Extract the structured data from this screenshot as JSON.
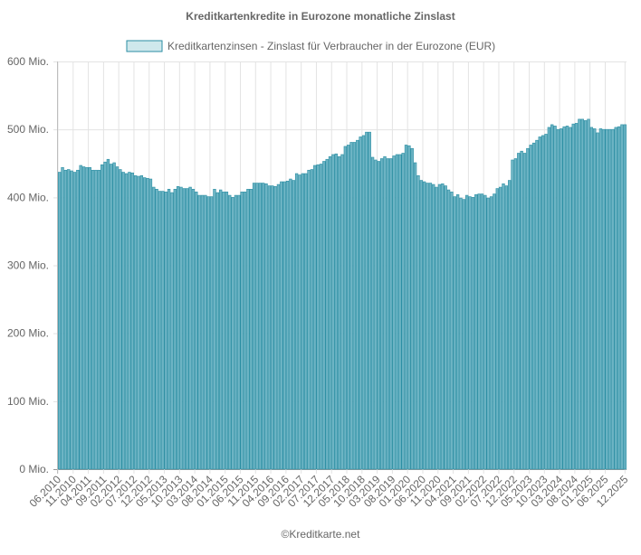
{
  "chart_data": {
    "type": "bar",
    "title": "Kreditkartenkredite in Eurozone monatliche Zinslast",
    "legend_position": "top",
    "grid": true,
    "x_start": "06.2010",
    "x_end": "12.2025",
    "x_tick_labels": [
      "06.2010",
      "11.2010",
      "04.2011",
      "09.2011",
      "02.2012",
      "07.2012",
      "12.2012",
      "05.2013",
      "10.2013",
      "03.2014",
      "08.2014",
      "01.2015",
      "06.2015",
      "11.2015",
      "04.2016",
      "09.2016",
      "02.2017",
      "07.2017",
      "12.2017",
      "05.2018",
      "10.2018",
      "03.2019",
      "08.2019",
      "01.2020",
      "06.2020",
      "11.2020",
      "04.2021",
      "09.2021",
      "02.2022",
      "07.2022",
      "12.2022",
      "05.2023",
      "10.2023",
      "03.2024",
      "08.2024",
      "01.2025",
      "06.2025",
      "12.2025"
    ],
    "y_ticks": [
      0,
      100,
      200,
      300,
      400,
      500,
      600
    ],
    "y_tick_suffix": " Mio.",
    "ylim": [
      0,
      600
    ],
    "series": [
      {
        "name": "Kreditkartenzinsen - Zinslast für Verbraucher in der Eurozone (EUR)",
        "fill_color": "#6db4c4",
        "border_color": "#2b8ea3",
        "legend_fill": "#cfe8ec",
        "values_mio": [
          437,
          444,
          440,
          441,
          439,
          437,
          440,
          447,
          445,
          444,
          444,
          440,
          440,
          440,
          448,
          452,
          456,
          449,
          451,
          445,
          441,
          437,
          435,
          437,
          436,
          432,
          431,
          432,
          429,
          428,
          427,
          415,
          412,
          409,
          409,
          408,
          412,
          407,
          412,
          416,
          415,
          413,
          413,
          415,
          412,
          408,
          403,
          403,
          403,
          401,
          401,
          412,
          407,
          411,
          408,
          408,
          403,
          400,
          403,
          403,
          408,
          408,
          412,
          412,
          421,
          421,
          421,
          421,
          420,
          417,
          417,
          416,
          419,
          423,
          423,
          424,
          427,
          425,
          435,
          433,
          435,
          435,
          440,
          441,
          447,
          448,
          449,
          453,
          456,
          460,
          463,
          464,
          460,
          463,
          475,
          477,
          481,
          481,
          484,
          489,
          491,
          496,
          496,
          459,
          455,
          453,
          457,
          460,
          457,
          457,
          461,
          463,
          463,
          465,
          477,
          476,
          472,
          451,
          432,
          425,
          423,
          421,
          421,
          419,
          415,
          419,
          420,
          417,
          411,
          408,
          401,
          404,
          399,
          397,
          403,
          401,
          400,
          404,
          405,
          405,
          403,
          399,
          401,
          405,
          413,
          415,
          420,
          417,
          425,
          455,
          457,
          465,
          468,
          465,
          472,
          477,
          480,
          484,
          489,
          491,
          493,
          503,
          507,
          505,
          500,
          501,
          504,
          505,
          503,
          508,
          509,
          515,
          515,
          513,
          515,
          503,
          501,
          495,
          501,
          500,
          500,
          500,
          500,
          503,
          504,
          507,
          507
        ]
      }
    ]
  },
  "footer": {
    "credit": "©Kreditkarte.net"
  }
}
